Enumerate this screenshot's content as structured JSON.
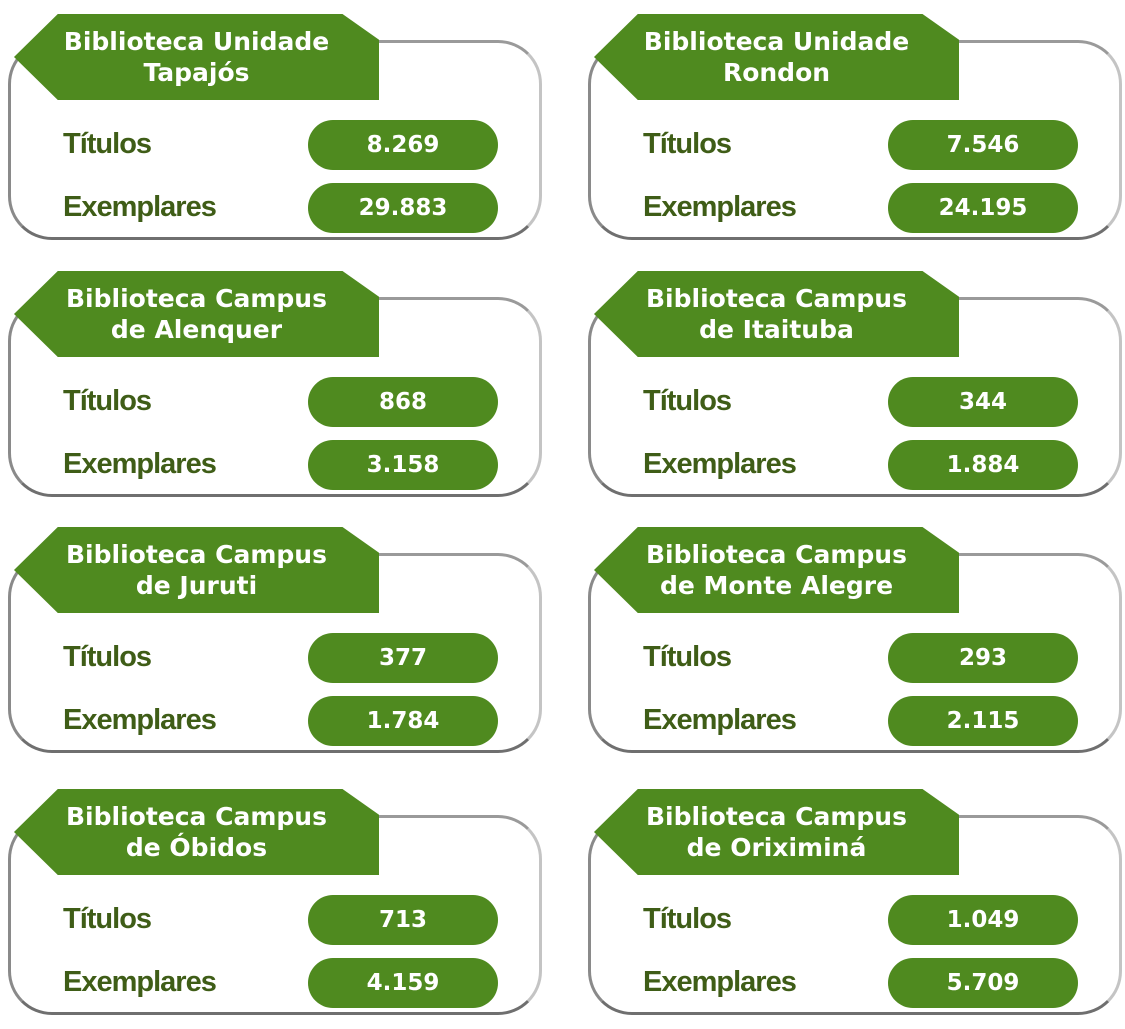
{
  "cards": [
    {
      "title": [
        "Biblioteca Unidade",
        "Tapajós"
      ],
      "rows": [
        {
          "label": "Títulos",
          "value": "8.269"
        },
        {
          "label": "Exemplares",
          "value": "29.883"
        }
      ]
    },
    {
      "title": [
        "Biblioteca Unidade",
        "Rondon"
      ],
      "rows": [
        {
          "label": "Títulos",
          "value": "7.546"
        },
        {
          "label": "Exemplares",
          "value": "24.195"
        }
      ]
    },
    {
      "title": [
        "Biblioteca Campus",
        "de Alenquer"
      ],
      "rows": [
        {
          "label": "Títulos",
          "value": "868"
        },
        {
          "label": "Exemplares",
          "value": "3.158"
        }
      ]
    },
    {
      "title": [
        "Biblioteca Campus",
        "de Itaituba"
      ],
      "rows": [
        {
          "label": "Títulos",
          "value": "344"
        },
        {
          "label": "Exemplares",
          "value": "1.884"
        }
      ]
    },
    {
      "title": [
        "Biblioteca Campus",
        "de Juruti"
      ],
      "rows": [
        {
          "label": "Títulos",
          "value": "377"
        },
        {
          "label": "Exemplares",
          "value": "1.784"
        }
      ]
    },
    {
      "title": [
        "Biblioteca Campus",
        "de Monte Alegre"
      ],
      "rows": [
        {
          "label": "Títulos",
          "value": "293"
        },
        {
          "label": "Exemplares",
          "value": "2.115"
        }
      ]
    },
    {
      "title": [
        "Biblioteca Campus",
        "de Óbidos"
      ],
      "rows": [
        {
          "label": "Títulos",
          "value": "713"
        },
        {
          "label": "Exemplares",
          "value": "4.159"
        }
      ]
    },
    {
      "title": [
        "Biblioteca Campus",
        "de Oriximiná"
      ],
      "rows": [
        {
          "label": "Títulos",
          "value": "1.049"
        },
        {
          "label": "Exemplares",
          "value": "5.709"
        }
      ]
    }
  ]
}
